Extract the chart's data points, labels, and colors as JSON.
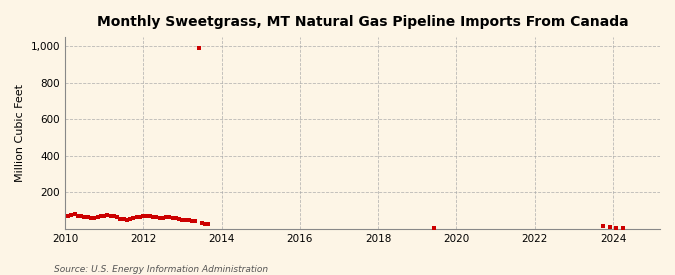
{
  "title": "Monthly Sweetgrass, MT Natural Gas Pipeline Imports From Canada",
  "ylabel": "Million Cubic Feet",
  "source": "Source: U.S. Energy Information Administration",
  "background_color": "#fdf5e6",
  "plot_bg_color": "#fdf5e6",
  "marker_color": "#cc0000",
  "marker": "s",
  "marker_size": 3,
  "xlim": [
    2010.0,
    2025.2
  ],
  "ylim": [
    0,
    1050
  ],
  "yticks": [
    0,
    200,
    400,
    600,
    800,
    1000
  ],
  "ytick_labels": [
    "",
    "200",
    "400",
    "600",
    "800",
    "1,000"
  ],
  "xticks": [
    2010,
    2012,
    2014,
    2016,
    2018,
    2020,
    2022,
    2024
  ],
  "data_points": [
    [
      2010.083,
      70
    ],
    [
      2010.167,
      75
    ],
    [
      2010.25,
      78
    ],
    [
      2010.333,
      72
    ],
    [
      2010.417,
      68
    ],
    [
      2010.5,
      65
    ],
    [
      2010.583,
      62
    ],
    [
      2010.667,
      60
    ],
    [
      2010.75,
      58
    ],
    [
      2010.833,
      63
    ],
    [
      2010.917,
      67
    ],
    [
      2011.0,
      72
    ],
    [
      2011.083,
      75
    ],
    [
      2011.167,
      70
    ],
    [
      2011.25,
      68
    ],
    [
      2011.333,
      65
    ],
    [
      2011.417,
      55
    ],
    [
      2011.5,
      52
    ],
    [
      2011.583,
      50
    ],
    [
      2011.667,
      55
    ],
    [
      2011.75,
      60
    ],
    [
      2011.833,
      65
    ],
    [
      2011.917,
      62
    ],
    [
      2012.0,
      68
    ],
    [
      2012.083,
      72
    ],
    [
      2012.167,
      70
    ],
    [
      2012.25,
      66
    ],
    [
      2012.333,
      62
    ],
    [
      2012.417,
      58
    ],
    [
      2012.5,
      60
    ],
    [
      2012.583,
      65
    ],
    [
      2012.667,
      63
    ],
    [
      2012.75,
      60
    ],
    [
      2012.833,
      58
    ],
    [
      2012.917,
      55
    ],
    [
      2013.0,
      50
    ],
    [
      2013.083,
      48
    ],
    [
      2013.167,
      45
    ],
    [
      2013.25,
      42
    ],
    [
      2013.333,
      40
    ],
    [
      2013.417,
      990
    ],
    [
      2013.5,
      30
    ],
    [
      2013.583,
      28
    ],
    [
      2013.667,
      25
    ],
    [
      2019.417,
      5
    ],
    [
      2023.75,
      15
    ],
    [
      2023.917,
      8
    ],
    [
      2024.083,
      5
    ],
    [
      2024.25,
      3
    ]
  ]
}
